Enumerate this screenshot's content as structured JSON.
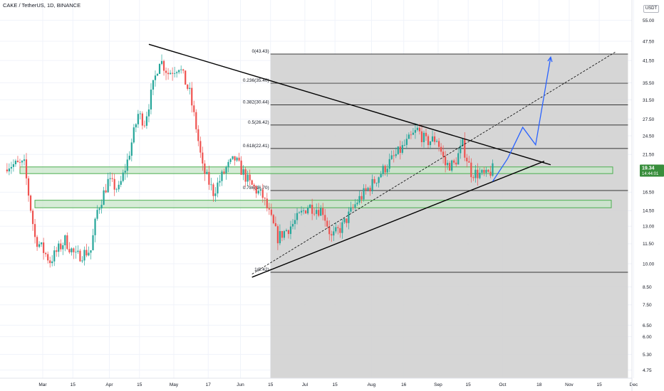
{
  "header": {
    "title": "CAKE / TetherUS, 1D, BINANCE",
    "quote_badge": "USDT"
  },
  "colors": {
    "up": "#26a69a",
    "down": "#ef5350",
    "zone_fill": "#c8e6c9",
    "zone_border": "#4caf50",
    "shade": "#d1d1d1",
    "projection": "#2962ff",
    "trendline": "#000000",
    "price_tag": "#388e3c"
  },
  "chart_data": {
    "type": "candlestick",
    "x_ticks": [
      "Mar",
      "15",
      "Apr",
      "15",
      "May",
      "17",
      "Jun",
      "15",
      "Jul",
      "15",
      "Aug",
      "16",
      "Sep",
      "15",
      "Oct",
      "18",
      "Nov",
      "15",
      "Dec"
    ],
    "y_ticks": [
      "55.00",
      "47.50",
      "41.50",
      "35.50",
      "31.50",
      "27.50",
      "24.50",
      "21.50",
      "16.50",
      "14.50",
      "13.00",
      "11.50",
      "10.00",
      "8.50",
      "7.50",
      "6.50",
      "6.00",
      "5.30",
      "4.75"
    ],
    "y_scale": "log",
    "current_price": "19.34",
    "countdown": "14:44:01",
    "fib_levels": [
      {
        "label": "0(43.43)",
        "price": 43.43
      },
      {
        "label": "0.236(35.40)",
        "price": 35.4
      },
      {
        "label": "0.382(30.44)",
        "price": 30.44
      },
      {
        "label": "0.5(26.42)",
        "price": 26.42
      },
      {
        "label": "0.618(22.41)",
        "price": 22.41
      },
      {
        "label": "0.786(16.70)",
        "price": 16.7
      },
      {
        "label": "1(9.42)",
        "price": 9.42
      }
    ],
    "support_zones": [
      {
        "low": 18.8,
        "high": 19.7
      },
      {
        "low": 14.8,
        "high": 15.6
      }
    ],
    "triangle": {
      "upper": [
        [
          "Apr 28",
          46.5
        ],
        [
          "Nov 1",
          20.0
        ]
      ],
      "lower": [
        [
          "Jun 15",
          9.1
        ],
        [
          "Oct 29",
          20.5
        ]
      ]
    },
    "dashed_channel": [
      [
        "Jun 15",
        9.3
      ],
      [
        "Dec 1",
        44.0
      ]
    ],
    "projection_path": [
      [
        "Oct 5",
        17.8
      ],
      [
        "Oct 12",
        20.9
      ],
      [
        "Oct 19",
        26.0
      ],
      [
        "Oct 25",
        23.0
      ],
      [
        "Nov 1",
        42.5
      ]
    ],
    "anchors": [
      {
        "date": "Mar 1",
        "price": 20.0
      },
      {
        "date": "Mar 6",
        "price": 12.0
      },
      {
        "date": "Mar 13",
        "price": 10.2
      },
      {
        "date": "Mar 20",
        "price": 11.8
      },
      {
        "date": "Mar 25",
        "price": 10.5
      },
      {
        "date": "Apr 1",
        "price": 11.0
      },
      {
        "date": "Apr 4",
        "price": 14.5
      },
      {
        "date": "Apr 9",
        "price": 17.8
      },
      {
        "date": "Apr 14",
        "price": 16.8
      },
      {
        "date": "Apr 18",
        "price": 20.5
      },
      {
        "date": "Apr 23",
        "price": 28.5
      },
      {
        "date": "Apr 26",
        "price": 27.0
      },
      {
        "date": "May 3",
        "price": 42.0
      },
      {
        "date": "May 7",
        "price": 38.0
      },
      {
        "date": "May 12",
        "price": 40.0
      },
      {
        "date": "May 17",
        "price": 33.0
      },
      {
        "date": "May 20",
        "price": 26.0
      },
      {
        "date": "May 23",
        "price": 19.5
      },
      {
        "date": "May 28",
        "price": 16.5
      },
      {
        "date": "Jun 3",
        "price": 19.5
      },
      {
        "date": "Jun 7",
        "price": 20.8
      },
      {
        "date": "Jun 14",
        "price": 17.5
      },
      {
        "date": "Jun 20",
        "price": 16.0
      },
      {
        "date": "Jun 27",
        "price": 12.0
      },
      {
        "date": "Jul 4",
        "price": 13.2
      },
      {
        "date": "Jul 11",
        "price": 15.0
      },
      {
        "date": "Jul 18",
        "price": 14.5
      },
      {
        "date": "Jul 22",
        "price": 12.0
      },
      {
        "date": "Jul 27",
        "price": 13.0
      },
      {
        "date": "Aug 3",
        "price": 15.5
      },
      {
        "date": "Aug 10",
        "price": 17.5
      },
      {
        "date": "Aug 17",
        "price": 20.0
      },
      {
        "date": "Aug 24",
        "price": 22.5
      },
      {
        "date": "Aug 31",
        "price": 25.5
      },
      {
        "date": "Sep 4",
        "price": 23.5
      },
      {
        "date": "Sep 9",
        "price": 24.0
      },
      {
        "date": "Sep 13",
        "price": 20.0
      },
      {
        "date": "Sep 17",
        "price": 20.0
      },
      {
        "date": "Sep 21",
        "price": 23.0
      },
      {
        "date": "Sep 25",
        "price": 19.0
      },
      {
        "date": "Oct 2",
        "price": 18.5
      },
      {
        "date": "Oct 5",
        "price": 19.34
      }
    ]
  }
}
